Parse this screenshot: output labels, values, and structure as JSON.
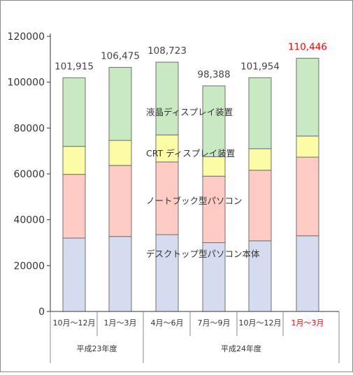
{
  "chart_data": {
    "type": "bar",
    "stacked": true,
    "categories": [
      "10月～12月",
      "1月～3月",
      "4月～6月",
      "7月～9月",
      "10月～12月",
      "1月～3月"
    ],
    "category_groups": [
      {
        "label": "平成23年度",
        "count": 2
      },
      {
        "label": "平成24年度",
        "count": 4
      }
    ],
    "totals": [
      "101,915",
      "106,475",
      "108,723",
      "98,388",
      "101,954",
      "110,446"
    ],
    "highlight_index": 5,
    "ylim": [
      0,
      120000
    ],
    "yticks": [
      "0",
      "20000",
      "40000",
      "60000",
      "80000",
      "100000",
      "120000"
    ],
    "grid": false,
    "series": [
      {
        "name": "デスクトップ型パソコン本体",
        "values": [
          32000,
          32700,
          33500,
          30000,
          30800,
          33000
        ],
        "color": "#d6dcef"
      },
      {
        "name": "ノートブック型パソコン",
        "values": [
          27800,
          31000,
          31700,
          29000,
          30800,
          34300
        ],
        "color": "#ffcbc4"
      },
      {
        "name": "CRT ディスプレイ装置",
        "values": [
          12200,
          10900,
          11800,
          8500,
          9400,
          9200
        ],
        "color": "#fcfca6"
      },
      {
        "name": "液晶ディスプレイ装置",
        "values": [
          29915,
          31875,
          31723,
          30888,
          30954,
          33946
        ],
        "color": "#c9e9c3"
      }
    ],
    "colors": {
      "bar_stroke": "#6f6f6f",
      "axis": "#333333",
      "label": "#444444",
      "highlight": "#ff0000"
    }
  }
}
